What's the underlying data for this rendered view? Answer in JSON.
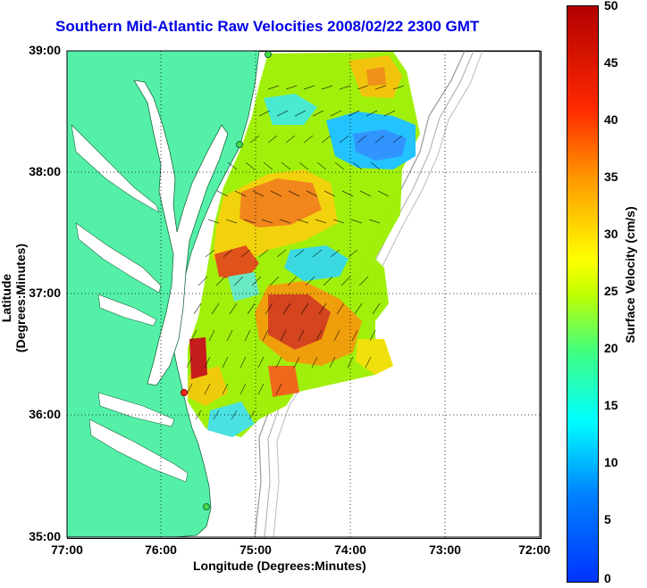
{
  "title": "Southern Mid-Atlantic Raw Velocities 2008/02/22 2300 GMT",
  "xlabel": "Longitude (Degrees:Minutes)",
  "ylabel": "Latitude (Degrees:Minutes)",
  "xticks": [
    "77:00",
    "76:00",
    "75:00",
    "74:00",
    "73:00",
    "72:00"
  ],
  "yticks": [
    "39:00",
    "38:00",
    "37:00",
    "36:00",
    "35:00"
  ],
  "colorbar": {
    "label": "Surface Velocity (cm/s)",
    "ticks": [
      "50",
      "45",
      "40",
      "35",
      "30",
      "25",
      "20",
      "15",
      "10",
      "5",
      "0"
    ],
    "range": [
      0,
      50
    ]
  },
  "colors": {
    "land": "#55f0a8",
    "water": "#ffffff",
    "title": "#0000e6",
    "station_green": "#44dd44",
    "station_red": "#ff2222"
  },
  "map_extent": {
    "lon_range": [
      -77,
      -72
    ],
    "lat_range": [
      35,
      39
    ]
  }
}
